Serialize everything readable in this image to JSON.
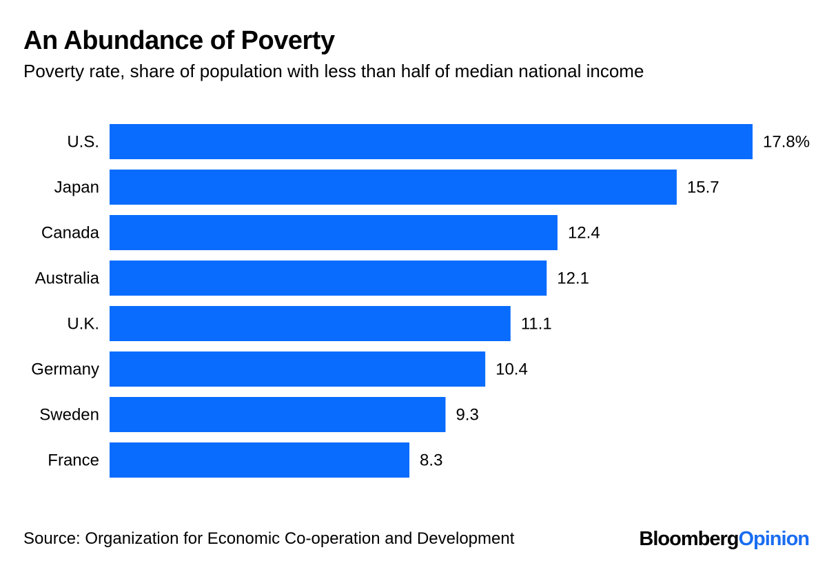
{
  "title": "An Abundance of Poverty",
  "subtitle": "Poverty rate, share of population with less than half of median national income",
  "source": "Source: Organization for Economic Co-operation and Development",
  "logo": {
    "part1": "Bloomberg",
    "part2": "Opinion"
  },
  "colors": {
    "bar": "#0a6cff",
    "logo_accent": "#1a6cf0"
  },
  "chart_data": {
    "type": "bar",
    "orientation": "horizontal",
    "categories": [
      "U.S.",
      "Japan",
      "Canada",
      "Australia",
      "U.K.",
      "Germany",
      "Sweden",
      "France"
    ],
    "values": [
      17.8,
      15.7,
      12.4,
      12.1,
      11.1,
      10.4,
      9.3,
      8.3
    ],
    "data_labels": [
      "17.8%",
      "15.7",
      "12.4",
      "12.1",
      "11.1",
      "10.4",
      "9.3",
      "8.3"
    ],
    "unit": "%",
    "xlim": [
      0,
      17.8
    ],
    "grid": false
  }
}
